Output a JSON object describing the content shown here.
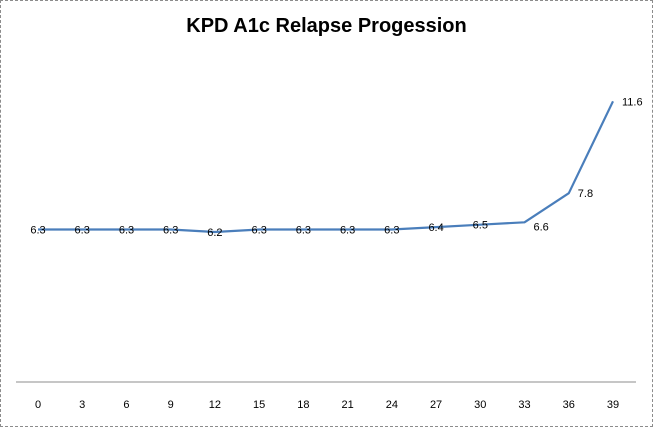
{
  "chart_data": {
    "type": "line",
    "title": "KPD A1c Relapse Progession",
    "xlabel": "",
    "ylabel": "",
    "x": [
      0,
      3,
      6,
      9,
      12,
      15,
      18,
      21,
      24,
      27,
      30,
      33,
      36,
      39
    ],
    "series": [
      {
        "values": [
          6.3,
          6.3,
          6.3,
          6.3,
          6.2,
          6.3,
          6.3,
          6.3,
          6.3,
          6.4,
          6.5,
          6.6,
          7.8,
          11.6
        ],
        "data_labels": [
          "6.3",
          "6.3",
          "6.3",
          "6.3",
          "6.2",
          "6.3",
          "6.3",
          "6.3",
          "6.3",
          "6.4",
          "6.5",
          "6.6",
          "7.8",
          "11.6"
        ]
      }
    ],
    "ylim": [
      0,
      14
    ],
    "grid": false,
    "line_color": "#4a7ebb"
  }
}
